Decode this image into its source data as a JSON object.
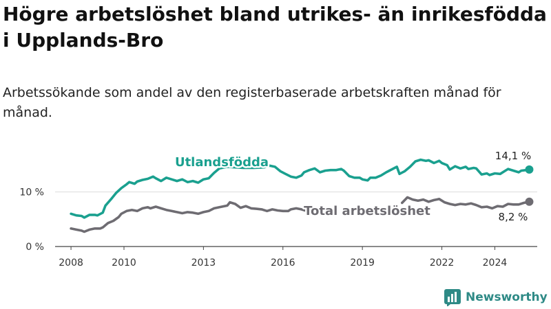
{
  "title": "Högre arbetslöshet bland utrikes- än inrikesfödda i Upplands-Bro",
  "subtitle": "Arbetssökande som andel av den registerbaserade arbetskraften månad för månad.",
  "brand": {
    "name": "Newsworthy",
    "icon": "newsworthy-logo-icon",
    "color": "#2e8a86"
  },
  "chart_data": {
    "type": "line",
    "title": "Högre arbetslöshet bland utrikes- än inrikesfödda i Upplands-Bro",
    "xlabel": "",
    "ylabel": "",
    "xlim": [
      2007.4,
      2025.6
    ],
    "ylim": [
      0,
      20
    ],
    "x_ticks": [
      {
        "value": 2008,
        "label": "2008"
      },
      {
        "value": 2010,
        "label": "2010"
      },
      {
        "value": 2013,
        "label": "2013"
      },
      {
        "value": 2016,
        "label": "2016"
      },
      {
        "value": 2019,
        "label": "2019"
      },
      {
        "value": 2022,
        "label": "2022"
      },
      {
        "value": 2024,
        "label": "2024"
      }
    ],
    "y_ticks": [
      {
        "value": 0,
        "label": "0 %"
      },
      {
        "value": 10,
        "label": "10 %"
      }
    ],
    "grid": true,
    "series": [
      {
        "name": "Utlandsfödda",
        "color": "#1aa08f",
        "last_label": "14,1 %",
        "points": [
          [
            2008.0,
            6.0
          ],
          [
            2008.2,
            5.7
          ],
          [
            2008.4,
            5.6
          ],
          [
            2008.5,
            5.3
          ],
          [
            2008.7,
            5.8
          ],
          [
            2008.9,
            5.8
          ],
          [
            2009.0,
            5.7
          ],
          [
            2009.2,
            6.2
          ],
          [
            2009.3,
            7.5
          ],
          [
            2009.5,
            8.6
          ],
          [
            2009.7,
            9.8
          ],
          [
            2009.9,
            10.7
          ],
          [
            2010.1,
            11.4
          ],
          [
            2010.2,
            11.8
          ],
          [
            2010.4,
            11.5
          ],
          [
            2010.5,
            11.9
          ],
          [
            2010.7,
            12.2
          ],
          [
            2010.9,
            12.4
          ],
          [
            2011.1,
            12.8
          ],
          [
            2011.2,
            12.5
          ],
          [
            2011.4,
            12.0
          ],
          [
            2011.6,
            12.6
          ],
          [
            2011.8,
            12.3
          ],
          [
            2012.0,
            12.0
          ],
          [
            2012.2,
            12.3
          ],
          [
            2012.4,
            11.8
          ],
          [
            2012.6,
            12.0
          ],
          [
            2012.8,
            11.7
          ],
          [
            2013.0,
            12.3
          ],
          [
            2013.2,
            12.5
          ],
          [
            2013.4,
            13.5
          ],
          [
            2013.6,
            14.3
          ],
          [
            2013.9,
            14.6
          ],
          [
            2014.2,
            14.5
          ],
          [
            2014.5,
            14.4
          ],
          [
            2014.9,
            14.4
          ],
          [
            2015.3,
            14.5
          ],
          [
            2015.5,
            14.8
          ],
          [
            2015.7,
            14.6
          ],
          [
            2015.9,
            13.8
          ],
          [
            2016.1,
            13.3
          ],
          [
            2016.3,
            12.8
          ],
          [
            2016.5,
            12.6
          ],
          [
            2016.7,
            13.0
          ],
          [
            2016.8,
            13.6
          ],
          [
            2017.0,
            14.0
          ],
          [
            2017.2,
            14.3
          ],
          [
            2017.4,
            13.6
          ],
          [
            2017.6,
            13.9
          ],
          [
            2017.8,
            14.0
          ],
          [
            2018.0,
            14.0
          ],
          [
            2018.2,
            14.2
          ],
          [
            2018.3,
            13.9
          ],
          [
            2018.5,
            12.9
          ],
          [
            2018.7,
            12.6
          ],
          [
            2018.9,
            12.6
          ],
          [
            2019.0,
            12.3
          ],
          [
            2019.2,
            12.1
          ],
          [
            2019.3,
            12.6
          ],
          [
            2019.5,
            12.6
          ],
          [
            2019.7,
            13.0
          ],
          [
            2019.9,
            13.6
          ],
          [
            2020.1,
            14.1
          ],
          [
            2020.3,
            14.6
          ],
          [
            2020.4,
            13.3
          ],
          [
            2020.6,
            13.8
          ],
          [
            2020.8,
            14.6
          ],
          [
            2021.0,
            15.6
          ],
          [
            2021.2,
            15.9
          ],
          [
            2021.4,
            15.7
          ],
          [
            2021.5,
            15.8
          ],
          [
            2021.7,
            15.3
          ],
          [
            2021.9,
            15.7
          ],
          [
            2022.0,
            15.3
          ],
          [
            2022.2,
            14.9
          ],
          [
            2022.3,
            14.1
          ],
          [
            2022.5,
            14.7
          ],
          [
            2022.7,
            14.3
          ],
          [
            2022.9,
            14.6
          ],
          [
            2023.0,
            14.2
          ],
          [
            2023.2,
            14.4
          ],
          [
            2023.3,
            14.3
          ],
          [
            2023.5,
            13.2
          ],
          [
            2023.7,
            13.4
          ],
          [
            2023.8,
            13.1
          ],
          [
            2024.0,
            13.4
          ],
          [
            2024.2,
            13.3
          ],
          [
            2024.4,
            13.9
          ],
          [
            2024.5,
            14.2
          ],
          [
            2024.7,
            13.9
          ],
          [
            2024.9,
            13.6
          ],
          [
            2025.0,
            13.9
          ],
          [
            2025.2,
            14.0
          ],
          [
            2025.3,
            14.1
          ]
        ]
      },
      {
        "name": "Total arbetslöshet",
        "color": "#6e6c72",
        "last_label": "8,2 %",
        "segments": [
          [
            [
              2008.0,
              3.3
            ],
            [
              2008.2,
              3.1
            ],
            [
              2008.4,
              2.9
            ],
            [
              2008.5,
              2.7
            ],
            [
              2008.7,
              3.1
            ],
            [
              2008.9,
              3.3
            ],
            [
              2009.1,
              3.3
            ],
            [
              2009.2,
              3.5
            ],
            [
              2009.4,
              4.3
            ],
            [
              2009.6,
              4.7
            ],
            [
              2009.8,
              5.4
            ],
            [
              2009.9,
              6.0
            ],
            [
              2010.1,
              6.5
            ],
            [
              2010.3,
              6.7
            ],
            [
              2010.5,
              6.5
            ],
            [
              2010.7,
              7.0
            ],
            [
              2010.9,
              7.2
            ],
            [
              2011.0,
              7.0
            ],
            [
              2011.2,
              7.3
            ],
            [
              2011.4,
              7.0
            ],
            [
              2011.6,
              6.7
            ],
            [
              2011.8,
              6.5
            ],
            [
              2012.0,
              6.3
            ],
            [
              2012.2,
              6.1
            ],
            [
              2012.4,
              6.3
            ],
            [
              2012.6,
              6.2
            ],
            [
              2012.8,
              6.0
            ],
            [
              2013.0,
              6.3
            ],
            [
              2013.2,
              6.5
            ],
            [
              2013.4,
              7.0
            ],
            [
              2013.6,
              7.2
            ],
            [
              2013.9,
              7.5
            ],
            [
              2014.0,
              8.1
            ],
            [
              2014.2,
              7.8
            ],
            [
              2014.4,
              7.1
            ],
            [
              2014.6,
              7.4
            ],
            [
              2014.8,
              7.0
            ],
            [
              2015.0,
              6.9
            ],
            [
              2015.2,
              6.8
            ],
            [
              2015.4,
              6.5
            ],
            [
              2015.6,
              6.8
            ],
            [
              2015.8,
              6.6
            ],
            [
              2016.0,
              6.5
            ],
            [
              2016.2,
              6.5
            ],
            [
              2016.3,
              6.8
            ],
            [
              2016.5,
              7.0
            ],
            [
              2016.7,
              6.8
            ],
            [
              2016.9,
              6.5
            ],
            [
              2017.1,
              6.2
            ],
            [
              2017.3,
              6.0
            ],
            [
              2017.5,
              6.3
            ]
          ],
          [
            [
              2020.5,
              8.0
            ],
            [
              2020.7,
              9.0
            ],
            [
              2020.9,
              8.6
            ],
            [
              2021.1,
              8.4
            ],
            [
              2021.3,
              8.6
            ],
            [
              2021.5,
              8.2
            ],
            [
              2021.7,
              8.5
            ],
            [
              2021.9,
              8.7
            ],
            [
              2022.1,
              8.1
            ],
            [
              2022.3,
              7.8
            ],
            [
              2022.5,
              7.6
            ],
            [
              2022.7,
              7.8
            ],
            [
              2022.9,
              7.7
            ],
            [
              2023.1,
              7.9
            ],
            [
              2023.3,
              7.6
            ],
            [
              2023.5,
              7.2
            ],
            [
              2023.7,
              7.3
            ],
            [
              2023.9,
              7.0
            ],
            [
              2024.1,
              7.4
            ],
            [
              2024.3,
              7.3
            ],
            [
              2024.5,
              7.8
            ],
            [
              2024.7,
              7.7
            ],
            [
              2024.9,
              7.7
            ],
            [
              2025.1,
              8.0
            ],
            [
              2025.3,
              8.2
            ]
          ]
        ]
      }
    ]
  }
}
